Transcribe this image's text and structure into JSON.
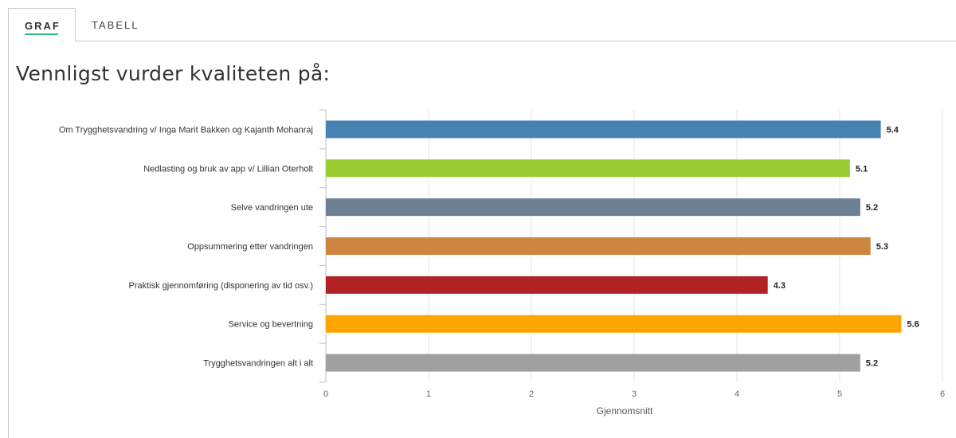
{
  "tabs": [
    {
      "label": "GRAF",
      "active": true
    },
    {
      "label": "TABELL",
      "active": false
    }
  ],
  "chart_data": {
    "type": "bar",
    "orientation": "horizontal",
    "title": "Vennligst vurder kvaliteten på:",
    "xlabel": "Gjennomsnitt",
    "ylabel": "",
    "xlim": [
      0,
      6
    ],
    "xticks": [
      "0",
      "1",
      "2",
      "3",
      "4",
      "5",
      "6"
    ],
    "grid": true,
    "categories": [
      "Om Trygghetsvandring v/ Inga Marit Bakken og Kajanth Mohanraj",
      "Nedlasting og bruk av app v/ Lillian Oterholt",
      "Selve vandringen ute",
      "Oppsummering etter vandringen",
      "Praktisk gjennomføring (disponering av tid osv.)",
      "Service og bevertning",
      "Trygghetsvandringen alt i alt"
    ],
    "values": [
      5.4,
      5.1,
      5.2,
      5.3,
      4.3,
      5.6,
      5.2
    ],
    "value_labels": [
      "5.4",
      "5.1",
      "5.2",
      "5.3",
      "4.3",
      "5.6",
      "5.2"
    ],
    "colors": [
      "#4682b4",
      "#9acd32",
      "#6e8093",
      "#cd853f",
      "#b22222",
      "#ffa500",
      "#a0a0a0"
    ]
  }
}
